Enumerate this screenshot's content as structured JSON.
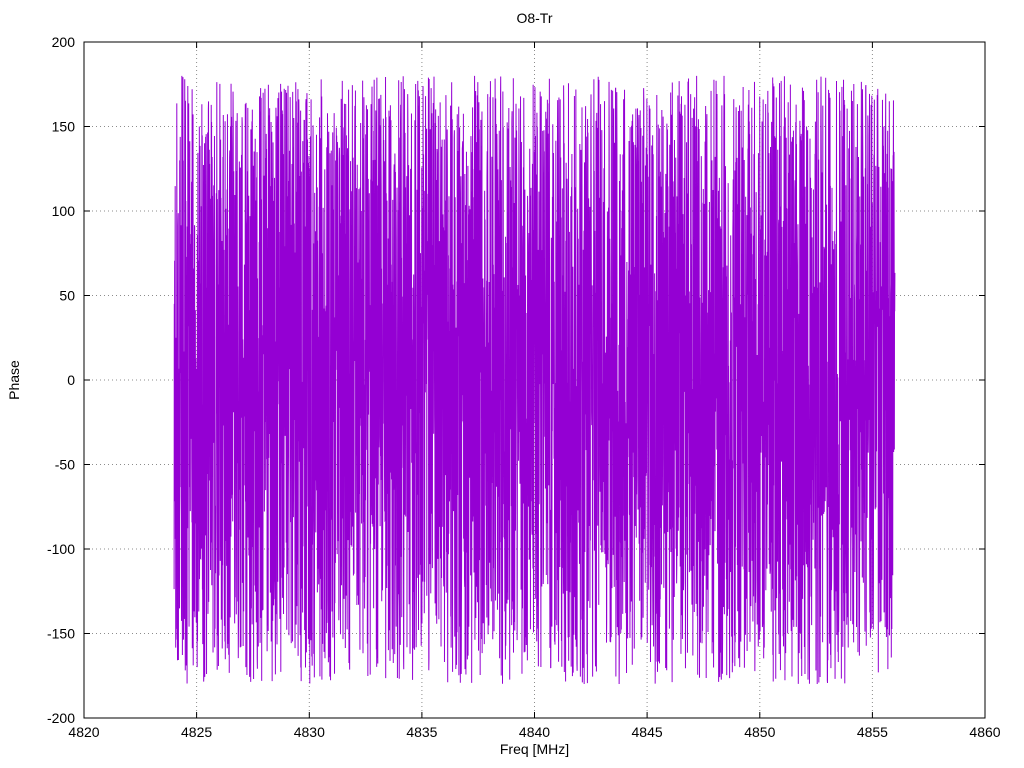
{
  "figure": {
    "background": "#ffffff"
  },
  "chart_data": {
    "type": "line",
    "title": "O8-Tr",
    "xlabel": "Freq [MHz]",
    "ylabel": "Phase",
    "xlim": [
      4820,
      4860
    ],
    "ylim": [
      -200,
      200
    ],
    "x_ticks": [
      4820,
      4825,
      4830,
      4835,
      4840,
      4845,
      4850,
      4855,
      4860
    ],
    "y_ticks": [
      -200,
      -150,
      -100,
      -50,
      0,
      50,
      100,
      150,
      200
    ],
    "grid": true,
    "legend": false,
    "line_color": "#9400d3",
    "grid_color": "#8c8c8c",
    "border_color": "#000000",
    "series": [
      {
        "name": "O8-Tr",
        "x_start": 4824.0,
        "x_end": 4856.0,
        "n_points": 4000,
        "y_min": -180,
        "y_max": 180,
        "distribution": "uniform",
        "seed": 8,
        "description": "Wrapped interferometric phase noise, uniformly scattered between -180 and +180 degrees across the band"
      }
    ]
  }
}
